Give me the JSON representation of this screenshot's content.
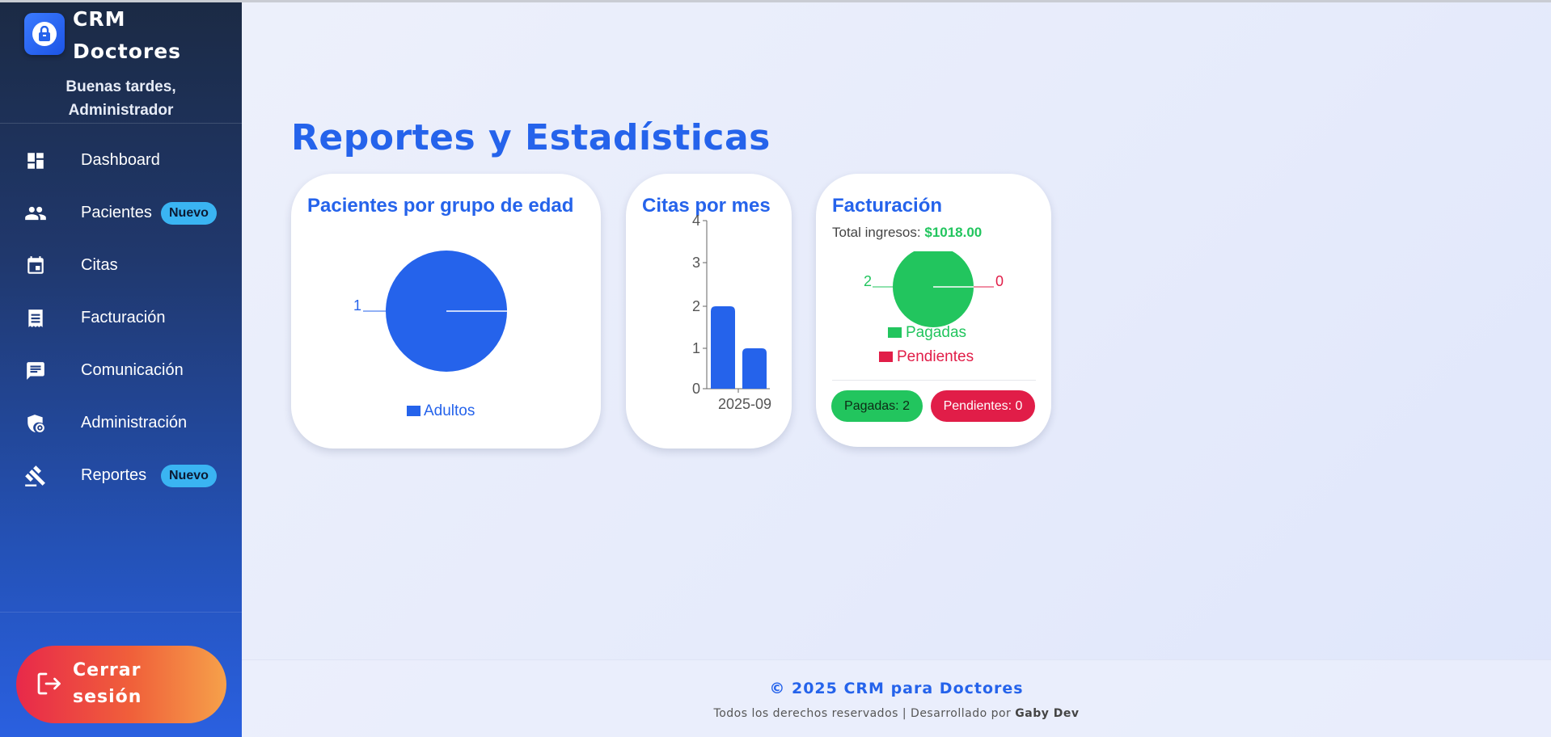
{
  "sidebar": {
    "brand_title_line1": "CRM",
    "brand_title_line2": "Doctores",
    "brand_icon": "lock-icon",
    "greeting_line1": "Buenas tardes,",
    "greeting_line2": "Administrador",
    "items": [
      {
        "label": "Dashboard",
        "icon": "dashboard-icon",
        "badge": ""
      },
      {
        "label": "Pacientes",
        "icon": "people-icon",
        "badge": "Nuevo"
      },
      {
        "label": "Citas",
        "icon": "calendar-icon",
        "badge": ""
      },
      {
        "label": "Facturación",
        "icon": "receipt-icon",
        "badge": ""
      },
      {
        "label": "Comunicación",
        "icon": "chat-icon",
        "badge": ""
      },
      {
        "label": "Administración",
        "icon": "admin-shield-icon",
        "badge": ""
      },
      {
        "label": "Reportes",
        "icon": "gavel-icon",
        "badge": "Nuevo"
      }
    ],
    "logout_line1": "Cerrar",
    "logout_line2": "sesión"
  },
  "main": {
    "title": "Reportes y Estadísticas",
    "cards": {
      "age": {
        "title": "Pacientes por grupo de edad"
      },
      "appointments": {
        "title": "Citas por mes"
      },
      "billing": {
        "title": "Facturación",
        "total_label": "Total ingresos:",
        "total_value": "$1018.00",
        "paid_pill": "Pagadas: 2",
        "pending_pill": "Pendientes: 0"
      }
    }
  },
  "chart_data": [
    {
      "type": "pie",
      "title": "Pacientes por grupo de edad",
      "slices": [
        {
          "label": "Adultos",
          "value": 1,
          "color": "#2563eb"
        }
      ],
      "legend": [
        "Adultos"
      ],
      "legend_position": "bottom"
    },
    {
      "type": "bar",
      "title": "Citas por mes",
      "categories": [
        "2025-09"
      ],
      "series": [
        {
          "values": [
            2
          ],
          "color": "#2563eb"
        },
        {
          "values": [
            1
          ],
          "color": "#2563eb"
        }
      ],
      "y_ticks": [
        "0",
        "1",
        "2",
        "3",
        "4"
      ],
      "ylim": [
        0,
        4
      ]
    },
    {
      "type": "pie",
      "title": "Facturación",
      "slices": [
        {
          "label": "Pagadas",
          "value": 2,
          "color": "#22c55e"
        },
        {
          "label": "Pendientes",
          "value": 0,
          "color": "#e11d48"
        }
      ],
      "legend": [
        "Pagadas",
        "Pendientes"
      ],
      "legend_position": "bottom"
    }
  ],
  "footer": {
    "copyright": "© 2025 CRM para Doctores",
    "rights_prefix": "Todos los derechos reservados | Desarrollado por",
    "author": "Gaby Dev"
  }
}
